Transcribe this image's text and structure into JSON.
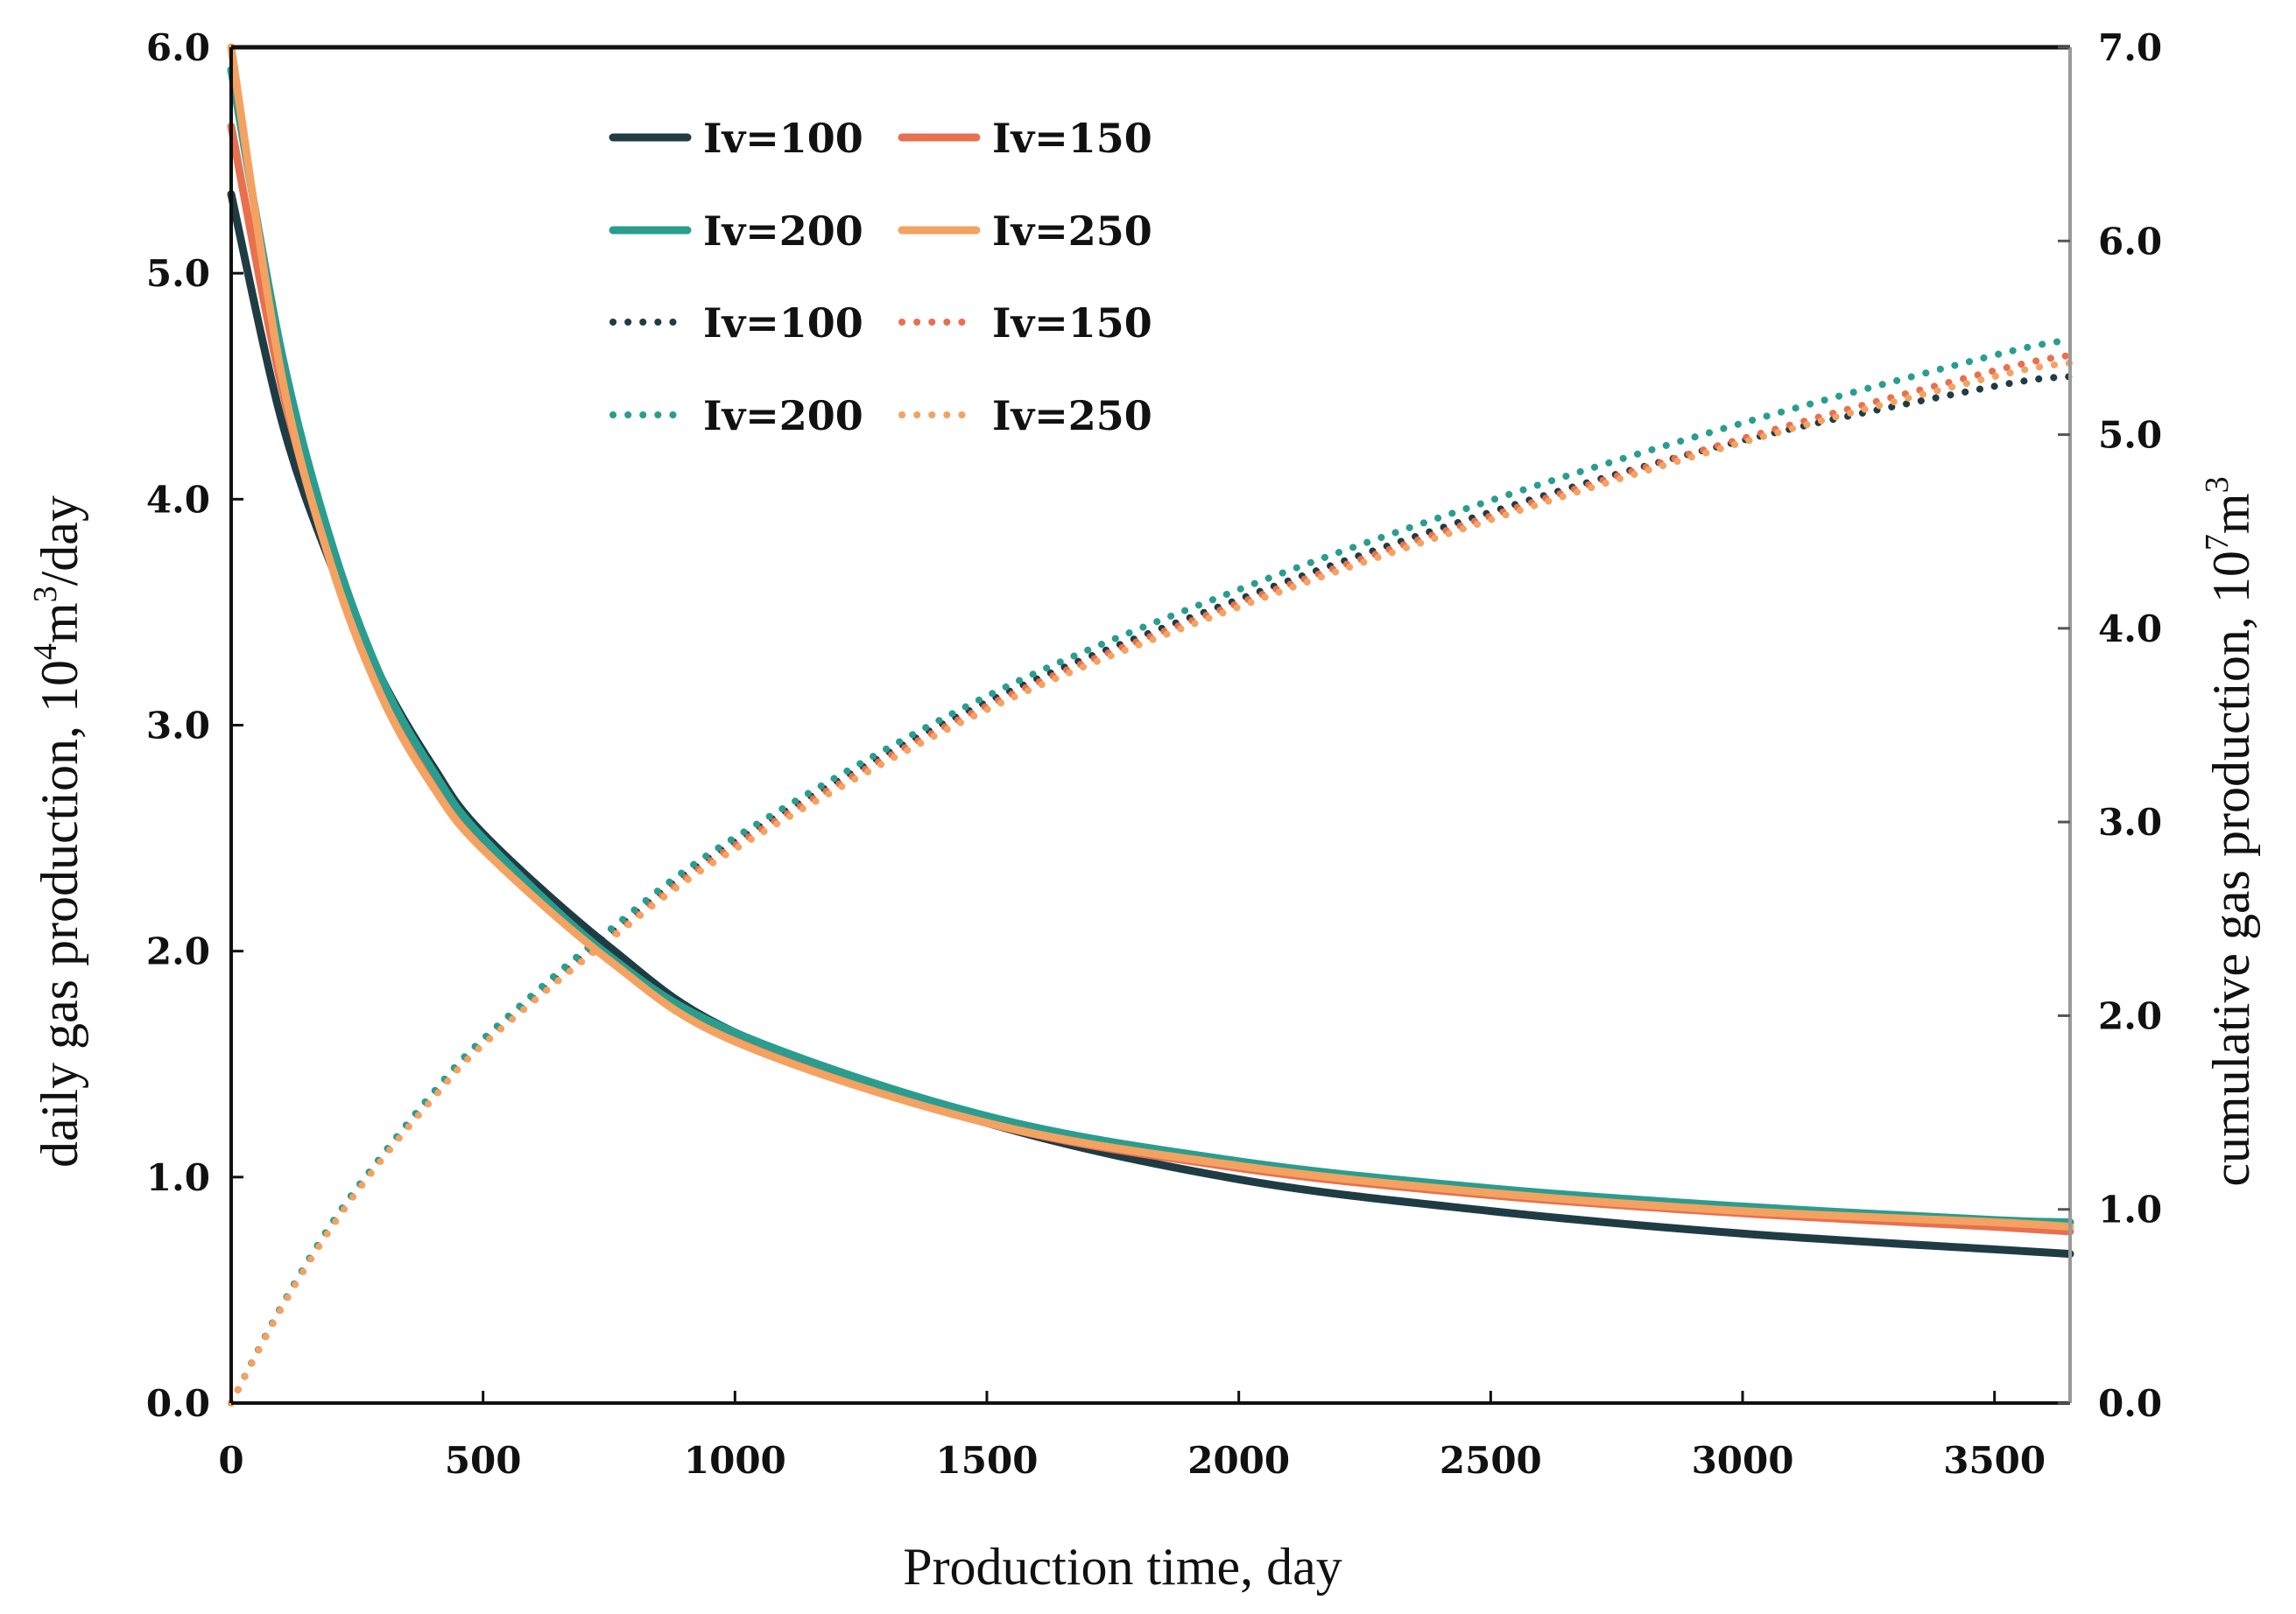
{
  "chart_data": {
    "type": "line",
    "title": "",
    "xlabel": "Production time, day",
    "ylabel_left": {
      "prefix": "daily gas production, 10",
      "sup": "4",
      "mid": "m",
      "sup2": "3",
      "suffix": "/day"
    },
    "ylabel_right": {
      "prefix": "cumulative gas production, 10",
      "sup": "7",
      "mid": "m",
      "sup2": "3",
      "suffix": ""
    },
    "xlim": [
      0,
      3650
    ],
    "ylim_left": [
      0,
      6
    ],
    "ylim_right": [
      0,
      7
    ],
    "x_ticks": [
      "0",
      "500",
      "1000",
      "1500",
      "2000",
      "2500",
      "3000",
      "3500"
    ],
    "x_tick_values": [
      0,
      500,
      1000,
      1500,
      2000,
      2500,
      3000,
      3500
    ],
    "y_left_ticks": [
      "0.0",
      "1.0",
      "2.0",
      "3.0",
      "4.0",
      "5.0",
      "6.0"
    ],
    "y_left_tick_values": [
      0,
      1,
      2,
      3,
      4,
      5,
      6
    ],
    "y_right_ticks": [
      "0.0",
      "1.0",
      "2.0",
      "3.0",
      "4.0",
      "5.0",
      "6.0",
      "7.0"
    ],
    "y_right_tick_values": [
      0,
      1,
      2,
      3,
      4,
      5,
      6,
      7
    ],
    "grid": false,
    "legend_position": "top-left",
    "x": [
      0,
      100,
      200,
      300,
      400,
      500,
      750,
      1000,
      1500,
      2000,
      2500,
      3000,
      3500,
      3650
    ],
    "series": [
      {
        "name": "Iv=100",
        "axis": "left",
        "style": "solid",
        "color": "#1f3c44",
        "values": [
          5.35,
          4.35,
          3.7,
          3.2,
          2.82,
          2.52,
          2.02,
          1.64,
          1.24,
          0.99,
          0.85,
          0.75,
          0.68,
          0.66
        ]
      },
      {
        "name": "Iv=150",
        "axis": "left",
        "style": "solid",
        "color": "#e8704f",
        "values": [
          5.65,
          4.5,
          3.72,
          3.15,
          2.76,
          2.47,
          1.97,
          1.62,
          1.24,
          1.04,
          0.92,
          0.84,
          0.78,
          0.76
        ]
      },
      {
        "name": "Iv=200",
        "axis": "left",
        "style": "solid",
        "color": "#2a9d8f",
        "values": [
          5.9,
          4.65,
          3.8,
          3.2,
          2.8,
          2.5,
          1.98,
          1.64,
          1.27,
          1.07,
          0.95,
          0.87,
          0.81,
          0.8
        ]
      },
      {
        "name": "Iv=250",
        "axis": "left",
        "style": "solid",
        "color": "#f4a261",
        "values": [
          6.0,
          4.55,
          3.7,
          3.12,
          2.73,
          2.45,
          1.96,
          1.6,
          1.24,
          1.05,
          0.93,
          0.85,
          0.8,
          0.78
        ]
      },
      {
        "name": "Iv=100",
        "axis": "right",
        "style": "dotted",
        "color": "#1f3c44",
        "values": [
          0.0,
          0.5,
          0.92,
          1.27,
          1.58,
          1.86,
          2.42,
          2.9,
          3.62,
          4.15,
          4.6,
          4.97,
          5.25,
          5.3
        ]
      },
      {
        "name": "Iv=150",
        "axis": "right",
        "style": "dotted",
        "color": "#e8704f",
        "values": [
          0.0,
          0.5,
          0.92,
          1.27,
          1.58,
          1.86,
          2.4,
          2.88,
          3.6,
          4.13,
          4.58,
          4.98,
          5.33,
          5.41
        ]
      },
      {
        "name": "Iv=200",
        "axis": "right",
        "style": "dotted",
        "color": "#2a9d8f",
        "values": [
          0.0,
          0.5,
          0.93,
          1.28,
          1.6,
          1.88,
          2.44,
          2.92,
          3.65,
          4.2,
          4.66,
          5.06,
          5.41,
          5.49
        ]
      },
      {
        "name": "Iv=250",
        "axis": "right",
        "style": "dotted",
        "color": "#f4a261",
        "values": [
          0.0,
          0.49,
          0.91,
          1.26,
          1.57,
          1.85,
          2.39,
          2.86,
          3.58,
          4.11,
          4.56,
          4.96,
          5.3,
          5.37
        ]
      }
    ]
  }
}
